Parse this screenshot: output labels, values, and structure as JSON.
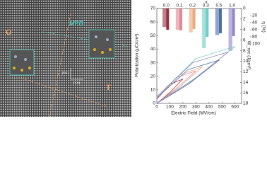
{
  "image_labels": {
    "left": "O",
    "middle": "MPB",
    "right": "T",
    "axis_a": "[011]",
    "axis_b": "[100]"
  },
  "chart_data": {
    "type": "line",
    "x_label": "Electric Field (MV/cm)",
    "y_label": "Polarization (μC/cm²)",
    "y2_label": "W_rec (J/cm³)",
    "eta_label": "η (%)",
    "top_label": "x",
    "xlim": [
      0,
      650
    ],
    "xticks": [
      0,
      100,
      200,
      300,
      400,
      500,
      600
    ],
    "ylim": [
      0,
      70
    ],
    "yticks": [
      0,
      10,
      20,
      30,
      40,
      50,
      60,
      70
    ],
    "y2lim": [
      0,
      18
    ],
    "y2ticks": [
      0,
      2,
      4,
      6,
      8,
      10,
      12,
      14,
      16,
      18
    ],
    "etalim": [
      0,
      100
    ],
    "etaticks": [
      20,
      40,
      60,
      80,
      100
    ],
    "categories": [
      "0.0",
      "0.1",
      "0.2",
      "0.3",
      "0.5",
      "1.0"
    ],
    "w_rec": [
      3.5,
      4,
      4.5,
      7.5,
      5,
      8
    ],
    "eta": [
      60,
      62,
      58,
      80,
      70,
      78
    ],
    "series": [
      {
        "name": "0.0",
        "color": "#8b1a2b",
        "x": [
          0,
          100,
          200,
          100,
          0
        ],
        "values": [
          0,
          8,
          18,
          14,
          3
        ]
      },
      {
        "name": "0.1",
        "color": "#e07a8a",
        "x": [
          0,
          150,
          300,
          150,
          0
        ],
        "values": [
          0,
          11,
          24,
          19,
          3
        ]
      },
      {
        "name": "0.2",
        "color": "#e8a070",
        "x": [
          0,
          175,
          350,
          175,
          0
        ],
        "values": [
          0,
          12,
          27,
          21,
          4
        ]
      },
      {
        "name": "0.3",
        "color": "#5fc9c0",
        "x": [
          0,
          300,
          600,
          300,
          0
        ],
        "values": [
          0,
          19,
          42,
          33,
          5
        ]
      },
      {
        "name": "0.5",
        "color": "#3a5f9f",
        "x": [
          0,
          240,
          480,
          240,
          0
        ],
        "values": [
          0,
          14,
          32,
          25,
          4
        ]
      },
      {
        "name": "1.0",
        "color": "#8a7cc0",
        "x": [
          0,
          275,
          550,
          275,
          0
        ],
        "values": [
          0,
          17,
          38,
          30,
          5
        ]
      }
    ]
  }
}
